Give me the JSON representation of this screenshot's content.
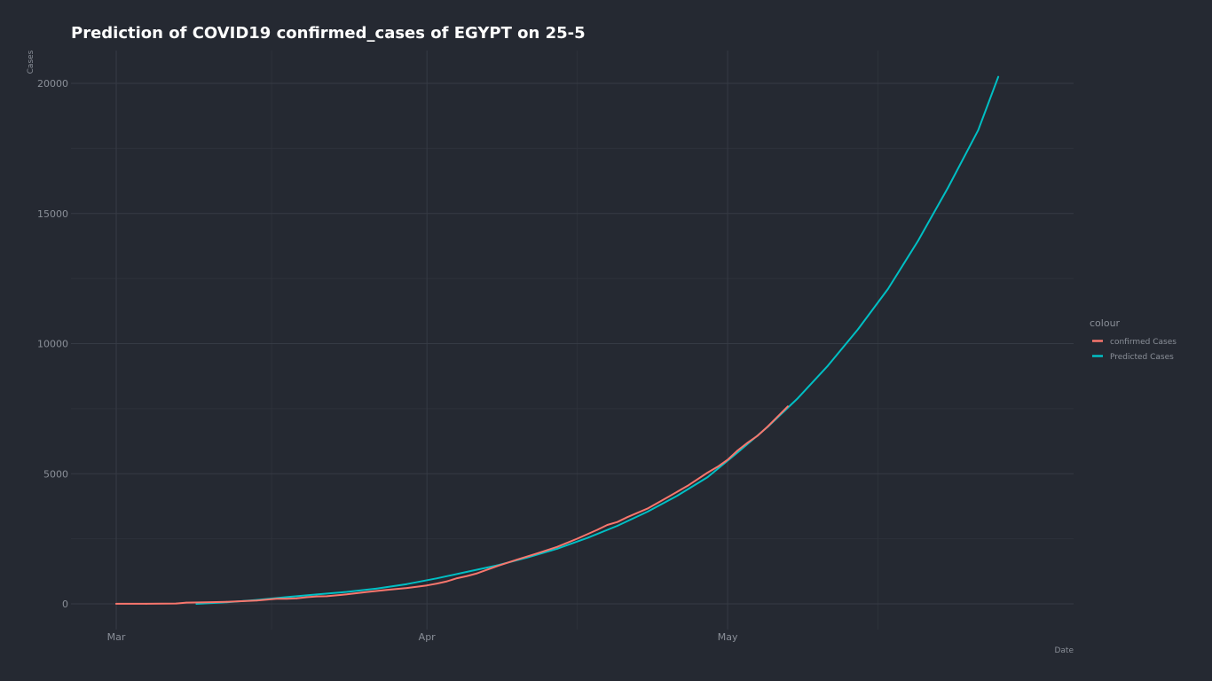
{
  "chart_data": {
    "type": "line",
    "title": "Prediction of COVID19 confirmed_cases of EGYPT on 25-5",
    "xlabel": "Date",
    "ylabel": "Cases",
    "x_axis": {
      "range": [
        "2020-03-01",
        "2020-05-31"
      ],
      "ticks": [
        {
          "date": "2020-03-01",
          "label": "Mar"
        },
        {
          "date": "2020-04-01",
          "label": "Apr"
        },
        {
          "date": "2020-05-01",
          "label": "May"
        }
      ]
    },
    "y_axis": {
      "range": [
        -1000,
        21500
      ],
      "ticks": [
        0,
        5000,
        10000,
        15000,
        20000
      ],
      "tick_labels": [
        "0",
        "5000",
        "10000",
        "15000",
        "20000"
      ]
    },
    "grid": true,
    "legend": {
      "title": "colour",
      "position": "right"
    },
    "series": [
      {
        "name": "confirmed Cases",
        "color": "#F8766D",
        "points": [
          [
            "2020-03-01",
            2
          ],
          [
            "2020-03-04",
            2
          ],
          [
            "2020-03-07",
            15
          ],
          [
            "2020-03-08",
            48
          ],
          [
            "2020-03-10",
            59
          ],
          [
            "2020-03-12",
            80
          ],
          [
            "2020-03-14",
            110
          ],
          [
            "2020-03-15",
            126
          ],
          [
            "2020-03-17",
            196
          ],
          [
            "2020-03-18",
            196
          ],
          [
            "2020-03-19",
            210
          ],
          [
            "2020-03-20",
            256
          ],
          [
            "2020-03-21",
            285
          ],
          [
            "2020-03-22",
            294
          ],
          [
            "2020-03-24",
            366
          ],
          [
            "2020-03-26",
            456
          ],
          [
            "2020-03-28",
            536
          ],
          [
            "2020-03-30",
            609
          ],
          [
            "2020-04-01",
            710
          ],
          [
            "2020-04-02",
            779
          ],
          [
            "2020-04-03",
            865
          ],
          [
            "2020-04-04",
            985
          ],
          [
            "2020-04-05",
            1070
          ],
          [
            "2020-04-06",
            1173
          ],
          [
            "2020-04-08",
            1450
          ],
          [
            "2020-04-10",
            1699
          ],
          [
            "2020-04-12",
            1939
          ],
          [
            "2020-04-14",
            2190
          ],
          [
            "2020-04-16",
            2505
          ],
          [
            "2020-04-18",
            2844
          ],
          [
            "2020-04-19",
            3032
          ],
          [
            "2020-04-20",
            3144
          ],
          [
            "2020-04-21",
            3333
          ],
          [
            "2020-04-23",
            3659
          ],
          [
            "2020-04-25",
            4092
          ],
          [
            "2020-04-27",
            4534
          ],
          [
            "2020-04-29",
            5042
          ],
          [
            "2020-04-30",
            5268
          ],
          [
            "2020-05-01",
            5537
          ],
          [
            "2020-05-02",
            5895
          ],
          [
            "2020-05-03",
            6193
          ],
          [
            "2020-05-04",
            6465
          ],
          [
            "2020-05-05",
            6813
          ],
          [
            "2020-05-06",
            7201
          ],
          [
            "2020-05-07",
            7588
          ]
        ]
      },
      {
        "name": "Predicted Cases",
        "color": "#00BFC4",
        "points": [
          [
            "2020-03-09",
            0
          ],
          [
            "2020-03-12",
            60
          ],
          [
            "2020-03-15",
            150
          ],
          [
            "2020-03-18",
            260
          ],
          [
            "2020-03-21",
            360
          ],
          [
            "2020-03-24",
            460
          ],
          [
            "2020-03-27",
            590
          ],
          [
            "2020-03-30",
            760
          ],
          [
            "2020-04-02",
            980
          ],
          [
            "2020-04-05",
            1230
          ],
          [
            "2020-04-08",
            1480
          ],
          [
            "2020-04-11",
            1780
          ],
          [
            "2020-04-14",
            2120
          ],
          [
            "2020-04-17",
            2530
          ],
          [
            "2020-04-20",
            3000
          ],
          [
            "2020-04-23",
            3540
          ],
          [
            "2020-04-26",
            4160
          ],
          [
            "2020-04-29",
            4870
          ],
          [
            "2020-05-02",
            5820
          ],
          [
            "2020-05-05",
            6800
          ],
          [
            "2020-05-08",
            7900
          ],
          [
            "2020-05-11",
            9150
          ],
          [
            "2020-05-14",
            10550
          ],
          [
            "2020-05-17",
            12100
          ],
          [
            "2020-05-20",
            13950
          ],
          [
            "2020-05-23",
            16000
          ],
          [
            "2020-05-26",
            18200
          ],
          [
            "2020-05-28",
            20250
          ]
        ]
      }
    ]
  }
}
